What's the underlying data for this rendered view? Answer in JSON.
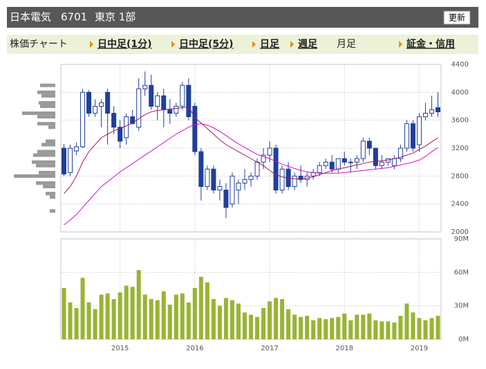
{
  "header": {
    "name": "日本電気",
    "code": "6701",
    "market": "東京 1部",
    "button": "更新"
  },
  "nav": {
    "title": "株価チャート",
    "items": [
      {
        "label": "日中足(1分)"
      },
      {
        "label": "日中足(5分)"
      },
      {
        "label": "日足"
      },
      {
        "label": "週足"
      },
      {
        "label": "月足",
        "selected": true
      },
      {
        "label": "証金・信用"
      }
    ]
  },
  "chart_data": [
    {
      "type": "candlestick",
      "up_color": "#ffffff",
      "down_color": "#1f3f99",
      "edge_color": "#1f3f99",
      "open": [
        3200,
        2850,
        3160,
        3220,
        4000,
        3700,
        3800,
        4000,
        3700,
        3500,
        3350,
        3650,
        3500,
        4050,
        4100,
        3800,
        3950,
        3750,
        3700,
        3800,
        4100,
        3800,
        3150,
        2650,
        2900,
        2600,
        2600,
        2400,
        2600,
        2700,
        2750,
        2800,
        3000,
        3100,
        3200,
        2600,
        2900,
        2650,
        2800,
        2750,
        2800,
        2850,
        2950,
        3000,
        2900,
        3050,
        3000,
        3000,
        3050,
        3300,
        3200,
        2950,
        3000,
        2950,
        3050,
        3200,
        3550,
        3250,
        3650,
        3700,
        3780
      ],
      "high": [
        3260,
        3250,
        3280,
        4050,
        4030,
        3900,
        3900,
        4050,
        3800,
        3600,
        3700,
        3750,
        4200,
        4300,
        4250,
        4000,
        4050,
        3900,
        3850,
        4150,
        4200,
        3850,
        3200,
        2950,
        2950,
        2750,
        2700,
        2850,
        2750,
        2900,
        2850,
        3050,
        3200,
        3300,
        3250,
        2950,
        3000,
        2850,
        2950,
        2850,
        2900,
        3000,
        3050,
        3100,
        3050,
        3150,
        3050,
        3100,
        3350,
        3350,
        3200,
        3100,
        3050,
        3100,
        3250,
        3600,
        3600,
        3700,
        3850,
        3950,
        4000
      ],
      "low": [
        2800,
        2800,
        3100,
        3200,
        3650,
        3650,
        3500,
        3250,
        3400,
        3200,
        3250,
        3550,
        3450,
        3950,
        3750,
        3600,
        3500,
        3550,
        3650,
        3750,
        3600,
        3100,
        2450,
        2600,
        2550,
        2450,
        2200,
        2350,
        2400,
        2600,
        2650,
        2750,
        2900,
        3000,
        2550,
        2550,
        2600,
        2600,
        2700,
        2650,
        2750,
        2800,
        2900,
        2850,
        2850,
        2950,
        2850,
        2900,
        3000,
        3100,
        2900,
        2900,
        2950,
        2900,
        3000,
        3150,
        3150,
        3150,
        3600,
        3650,
        3650
      ],
      "close": [
        2830,
        3200,
        3220,
        4000,
        3700,
        3800,
        3850,
        3700,
        3500,
        3300,
        3650,
        3550,
        4050,
        4100,
        3800,
        3950,
        3750,
        3700,
        3800,
        4100,
        3650,
        3150,
        2650,
        2900,
        2600,
        2650,
        2350,
        2800,
        2700,
        2750,
        2800,
        3000,
        3100,
        3200,
        2600,
        2900,
        2650,
        2800,
        2750,
        2800,
        2850,
        2950,
        3000,
        2900,
        3050,
        3000,
        3000,
        3050,
        3300,
        3200,
        2950,
        3000,
        3050,
        3050,
        3200,
        3550,
        3200,
        3650,
        3700,
        3750,
        3720
      ],
      "lines": [
        {
          "color": "#a3195b",
          "values": [
            2550,
            2650,
            2800,
            3000,
            3150,
            3250,
            3350,
            3400,
            3450,
            3480,
            3520,
            3560,
            3620,
            3680,
            3720,
            3740,
            3750,
            3760,
            3770,
            3780,
            3790,
            3640,
            3560,
            3480,
            3400,
            3320,
            3250,
            3200,
            3150,
            3100,
            3050,
            3000,
            2950,
            2880,
            2820,
            2790,
            2770,
            2760,
            2760,
            2770,
            2790,
            2820,
            2850,
            2880,
            2900,
            2920,
            2940,
            2960,
            2980,
            3000,
            3010,
            3020,
            3030,
            3050,
            3070,
            3100,
            3130,
            3180,
            3230,
            3290,
            3350
          ]
        },
        {
          "color": "#cc11cc",
          "values": [
            2100,
            2170,
            2250,
            2350,
            2450,
            2550,
            2650,
            2720,
            2790,
            2860,
            2920,
            2980,
            3040,
            3100,
            3160,
            3220,
            3280,
            3340,
            3400,
            3450,
            3500,
            3540,
            3550,
            3530,
            3490,
            3440,
            3380,
            3320,
            3260,
            3210,
            3160,
            3110,
            3080,
            3050,
            3010,
            2970,
            2940,
            2910,
            2880,
            2860,
            2850,
            2840,
            2840,
            2840,
            2840,
            2850,
            2860,
            2870,
            2880,
            2890,
            2900,
            2910,
            2920,
            2940,
            2960,
            2980,
            3000,
            3030,
            3080,
            3150,
            3210
          ]
        }
      ],
      "volume_profile": {
        "color": "#999999",
        "prices": [
          4100,
          4000,
          3950,
          3850,
          3800,
          3700,
          3650,
          3550,
          3500,
          3300,
          3250,
          3150,
          3100,
          3000,
          2950,
          2850,
          2800,
          2700,
          2650,
          2550,
          2500,
          2300
        ],
        "values": [
          22,
          26,
          20,
          24,
          22,
          48,
          26,
          26,
          10,
          14,
          20,
          26,
          32,
          34,
          28,
          24,
          60,
          28,
          18,
          14,
          8,
          8
        ]
      },
      "ylim": [
        2000,
        4400
      ],
      "yticks": [
        2000,
        2400,
        2800,
        3200,
        3600,
        4000,
        4400
      ],
      "grid": true
    },
    {
      "type": "bar",
      "color": "#99b433",
      "values": [
        46,
        33,
        28,
        55,
        33,
        27,
        40,
        41,
        36,
        42,
        48,
        47,
        62,
        40,
        36,
        35,
        43,
        31,
        40,
        41,
        33,
        46,
        56,
        51,
        36,
        30,
        37,
        35,
        32,
        24,
        22,
        20,
        28,
        34,
        37,
        36,
        27,
        22,
        20,
        21,
        17,
        19,
        18,
        19,
        20,
        23,
        17,
        22,
        22,
        23,
        17,
        16,
        16,
        15,
        21,
        32,
        24,
        19,
        17,
        19,
        21
      ],
      "ylim": [
        0,
        90
      ],
      "yticks": [
        {
          "value": 0,
          "label": "0M"
        },
        {
          "value": 30,
          "label": "30M"
        },
        {
          "value": 60,
          "label": "60M"
        },
        {
          "value": 90,
          "label": "90M"
        }
      ],
      "xticks": [
        {
          "value": 9,
          "label": "2015"
        },
        {
          "value": 21,
          "label": "2016"
        },
        {
          "value": 33,
          "label": "2017"
        },
        {
          "value": 45,
          "label": "2018"
        },
        {
          "value": 57,
          "label": "2019"
        }
      ],
      "grid": true
    }
  ]
}
